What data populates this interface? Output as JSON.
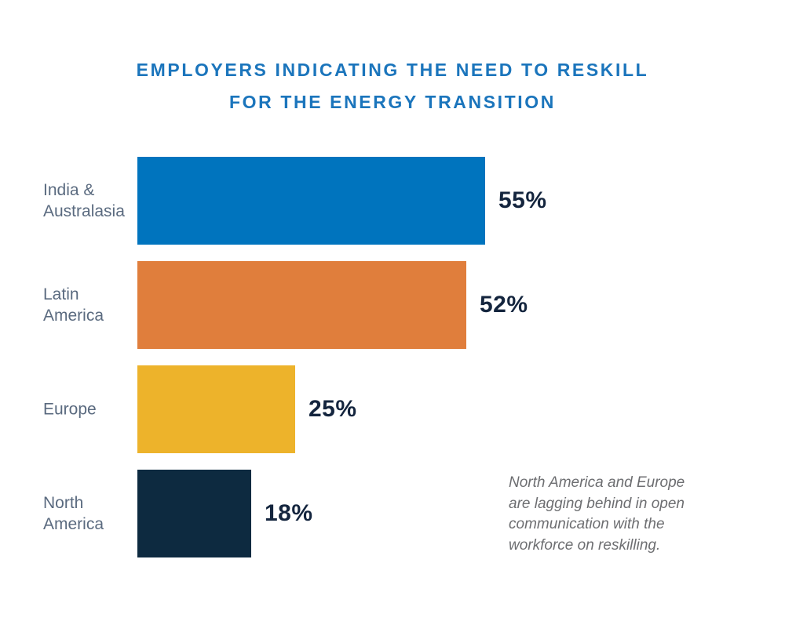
{
  "colors": {
    "background": "#FFFFFF",
    "title_blue": "#1B75BC",
    "category_label": "#5A6A7F",
    "value_label": "#14253E",
    "annotation_gray": "#6D6E71"
  },
  "chart_data": {
    "type": "bar",
    "orientation": "horizontal",
    "title": "EMPLOYERS INDICATING THE NEED TO RESKILL FOR THE ENERGY TRANSITION",
    "title_display": "EMPLOYERS INDICATING THE NEED TO RESKILL\nFOR THE ENERGY TRANSITION",
    "categories": [
      "India &\nAustralasia",
      "Latin\nAmerica",
      "Europe",
      "North\nAmerica"
    ],
    "values": [
      55,
      52,
      25,
      18
    ],
    "value_labels": [
      "55%",
      "52%",
      "25%",
      "18%"
    ],
    "bar_colors": [
      "#0074BE",
      "#E07E3C",
      "#EDB32B",
      "#0D2A40"
    ],
    "xlabel": "",
    "ylabel": "",
    "axis_visible": false,
    "grid": false,
    "legend": false,
    "annotation": "North America and Europe\nare lagging behind in open\ncommunication with the\nworkforce on reskilling."
  }
}
